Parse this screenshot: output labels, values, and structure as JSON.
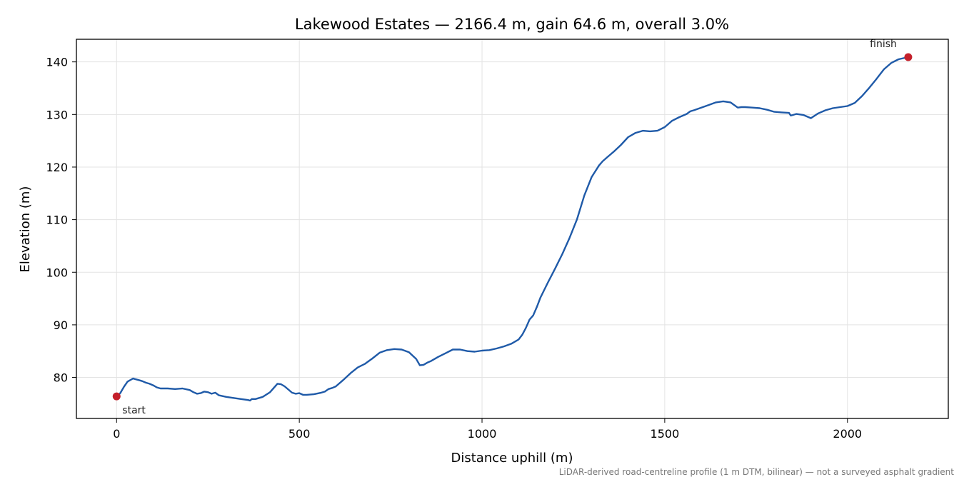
{
  "chart_data": {
    "type": "line",
    "title": "Lakewood Estates — 2166.4 m, gain 64.6 m, overall 3.0%",
    "xlabel": "Distance uphill (m)",
    "ylabel": "Elevation (m)",
    "xlim": [
      -110,
      2276
    ],
    "ylim": [
      72.2,
      144.3
    ],
    "xticks": [
      0,
      500,
      1000,
      1500,
      2000
    ],
    "yticks": [
      80,
      90,
      100,
      110,
      120,
      130,
      140
    ],
    "grid": true,
    "line_color": "#1f5aa8",
    "marker_color": "#c4202b",
    "series": [
      {
        "x": [
          0,
          10,
          20,
          30,
          40,
          45,
          50,
          60,
          70,
          80,
          90,
          100,
          110,
          120,
          140,
          160,
          180,
          200,
          210,
          220,
          230,
          240,
          250,
          260,
          270,
          280,
          300,
          320,
          340,
          360,
          365,
          370,
          380,
          400,
          420,
          440,
          450,
          460,
          480,
          490,
          500,
          510,
          520,
          540,
          560,
          570,
          580,
          590,
          600,
          620,
          640,
          660,
          680,
          700,
          720,
          740,
          760,
          780,
          800,
          820,
          830,
          840,
          850,
          860,
          880,
          900,
          920,
          940,
          960,
          980,
          1000,
          1020,
          1040,
          1060,
          1080,
          1100,
          1110,
          1120,
          1130,
          1140,
          1150,
          1160,
          1180,
          1200,
          1220,
          1240,
          1260,
          1280,
          1300,
          1320,
          1330,
          1340,
          1350,
          1360,
          1380,
          1400,
          1420,
          1440,
          1460,
          1480,
          1500,
          1510,
          1520,
          1540,
          1560,
          1570,
          1580,
          1600,
          1620,
          1640,
          1660,
          1680,
          1700,
          1710,
          1720,
          1740,
          1760,
          1780,
          1800,
          1820,
          1840,
          1845,
          1850,
          1860,
          1880,
          1900,
          1920,
          1940,
          1960,
          1980,
          2000,
          2020,
          2040,
          2060,
          2080,
          2100,
          2120,
          2140,
          2166.4
        ],
        "y": [
          76.4,
          77,
          78.2,
          79.2,
          79.6,
          79.8,
          79.7,
          79.5,
          79.3,
          79,
          78.8,
          78.5,
          78.1,
          77.9,
          77.9,
          77.8,
          77.9,
          77.6,
          77.2,
          76.9,
          77,
          77.3,
          77.2,
          76.9,
          77.1,
          76.6,
          76.3,
          76.1,
          75.9,
          75.7,
          75.6,
          75.9,
          75.9,
          76.3,
          77.2,
          78.8,
          78.7,
          78.3,
          77.1,
          76.9,
          77,
          76.7,
          76.7,
          76.8,
          77.1,
          77.3,
          77.8,
          78,
          78.3,
          79.5,
          80.8,
          81.9,
          82.6,
          83.6,
          84.7,
          85.2,
          85.4,
          85.3,
          84.8,
          83.5,
          82.3,
          82.4,
          82.8,
          83.1,
          83.9,
          84.6,
          85.3,
          85.3,
          85,
          84.9,
          85.1,
          85.2,
          85.5,
          85.9,
          86.4,
          87.2,
          88.1,
          89.4,
          91,
          91.8,
          93.4,
          95.2,
          98,
          100.7,
          103.5,
          106.6,
          110.1,
          114.6,
          118.1,
          120.3,
          121.1,
          121.7,
          122.3,
          122.9,
          124.2,
          125.7,
          126.5,
          126.9,
          126.8,
          126.9,
          127.6,
          128.2,
          128.8,
          129.5,
          130.1,
          130.6,
          130.8,
          131.3,
          131.8,
          132.3,
          132.5,
          132.3,
          131.3,
          131.4,
          131.4,
          131.3,
          131.2,
          130.9,
          130.5,
          130.4,
          130.3,
          129.8,
          129.9,
          130.1,
          129.9,
          129.3,
          130.2,
          130.8,
          131.2,
          131.4,
          131.6,
          132.2,
          133.5,
          135.1,
          136.8,
          138.6,
          139.8,
          140.5,
          140.9
        ]
      }
    ],
    "annotations": {
      "start": "start",
      "finish": "finish"
    },
    "footnote": "LiDAR-derived road-centreline profile (1 m DTM, bilinear) — not a surveyed asphalt gradient"
  }
}
